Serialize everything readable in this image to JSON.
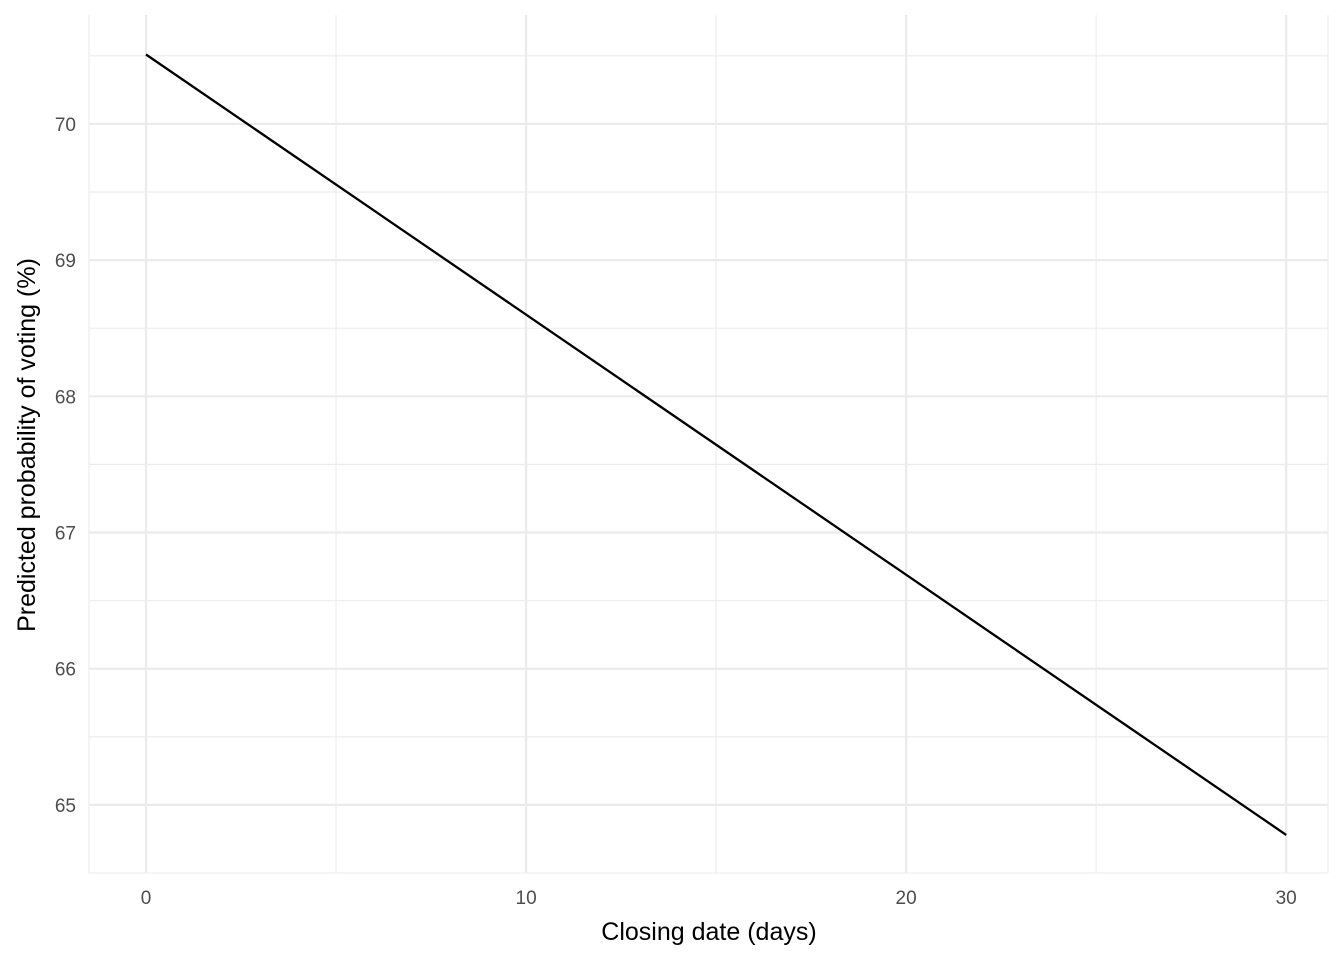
{
  "chart_data": {
    "type": "line",
    "xlabel": "Closing date (days)",
    "ylabel": "Predicted probability of voting (%)",
    "xlim": [
      -1.5,
      31.1
    ],
    "ylim": [
      64.5,
      70.8
    ],
    "x_ticks": [
      0,
      10,
      20,
      30
    ],
    "x_minor_ticks": [
      -1.5,
      5,
      15,
      25,
      31.1
    ],
    "y_ticks": [
      65,
      66,
      67,
      68,
      69,
      70
    ],
    "y_minor_ticks": [
      64.5,
      65.5,
      66.5,
      67.5,
      68.5,
      69.5,
      70.5
    ],
    "grid": true,
    "legend": "none",
    "series": [
      {
        "color": "#000000",
        "x": [
          0,
          30
        ],
        "y": [
          70.51,
          64.78
        ]
      }
    ]
  }
}
